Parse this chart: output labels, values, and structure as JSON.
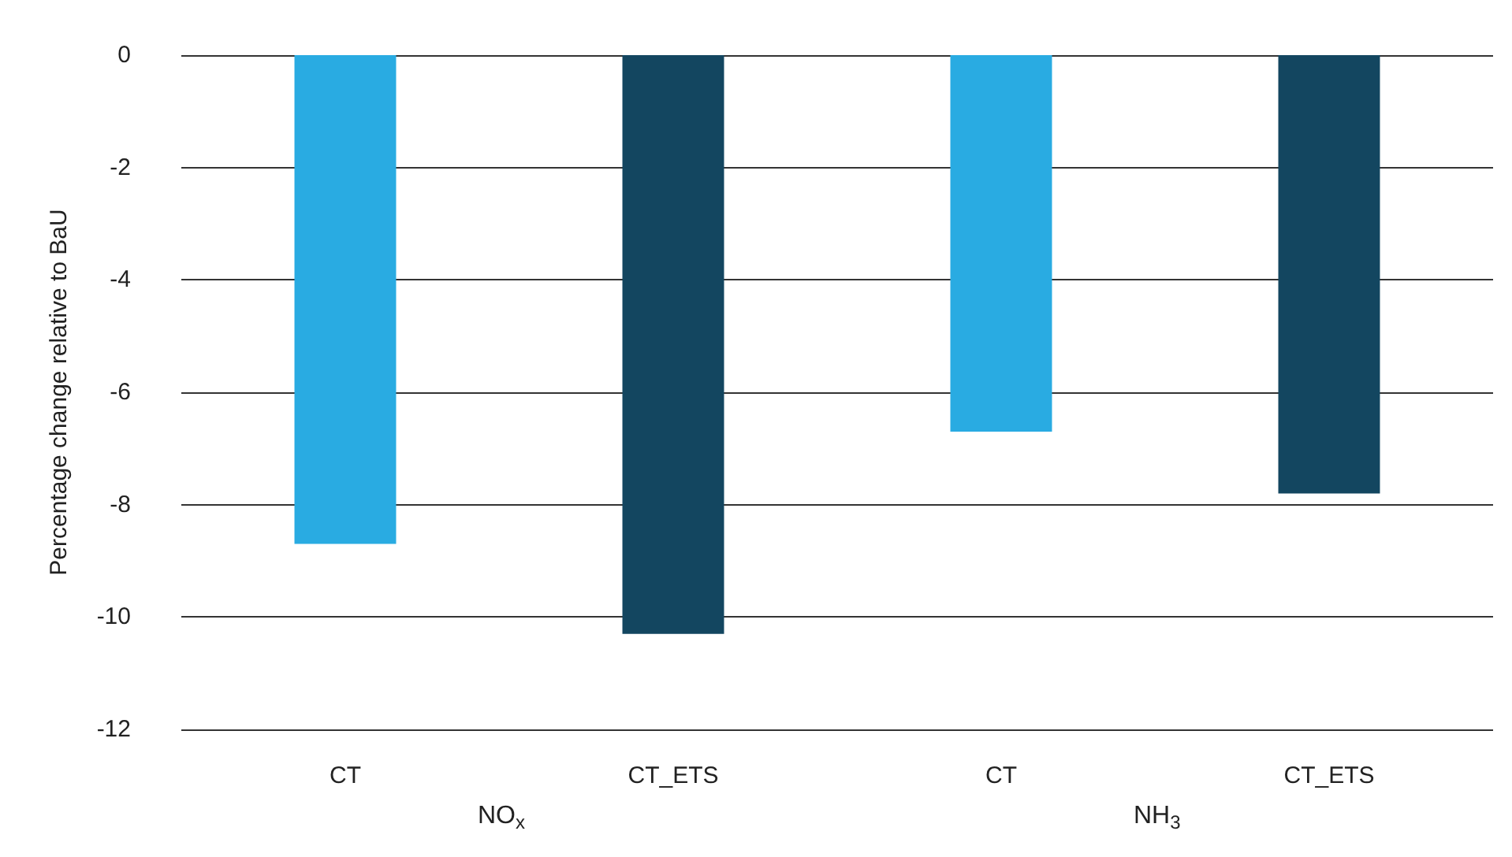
{
  "chart_data": {
    "type": "bar",
    "ylabel": "Percentage change relative to BaU",
    "categories": [
      "CT",
      "CT_ETS",
      "CT",
      "CT_ETS"
    ],
    "values": [
      -8.7,
      -10.3,
      -6.7,
      -7.8
    ],
    "colors": [
      "#29abe2",
      "#134660",
      "#29abe2",
      "#134660"
    ],
    "ylim": [
      -12,
      0
    ],
    "yticks": [
      -12,
      -10,
      -8,
      -6,
      -4,
      -2,
      0
    ],
    "grid": "y",
    "annotations": [
      "NO$_{x}$",
      "NH$_{3}$"
    ]
  }
}
